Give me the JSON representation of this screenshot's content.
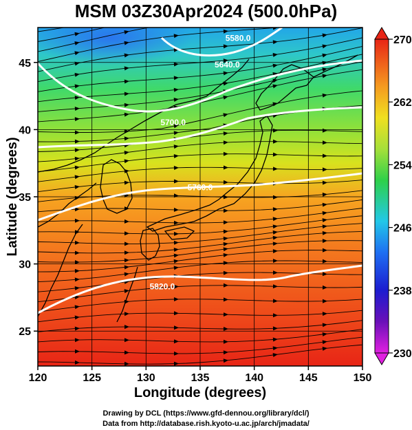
{
  "title": "MSM 03Z30Apr2024 (500.0hPa)",
  "map": {
    "x_axis": {
      "label": "Longitude (degrees)",
      "range": [
        120,
        150
      ],
      "ticks": [
        "120",
        "125",
        "130",
        "135",
        "140",
        "145",
        "150"
      ]
    },
    "y_axis": {
      "label": "Latitude  (degrees)",
      "range": [
        22.4,
        47.6
      ],
      "ticks": [
        "25",
        "30",
        "35",
        "40",
        "45"
      ]
    },
    "colorbar": {
      "range": [
        230,
        270
      ],
      "ticks": [
        "230",
        "238",
        "246",
        "254",
        "262",
        "270"
      ]
    },
    "contours": [
      {
        "label": "5820.0",
        "lat_west": 27.0,
        "lat_east": 30.4
      },
      {
        "label": "5760.0",
        "lat_west": 33.8,
        "lat_east": 37.6
      },
      {
        "label": "5700.0",
        "lat_west": 39.5,
        "lat_east": 42.0
      },
      {
        "label": "5640.0",
        "lat_west": 44.6,
        "lat_east": 45.0
      },
      {
        "label": "5580.0",
        "lat_west": 46.2,
        "lat_east": 47.2
      }
    ]
  },
  "credits": {
    "line1": "Drawing by DCL (https://www.gfd-dennou.org/library/dcl/)",
    "line2": "Data from http://database.rish.kyoto-u.ac.jp/arch/jmadata/"
  }
}
